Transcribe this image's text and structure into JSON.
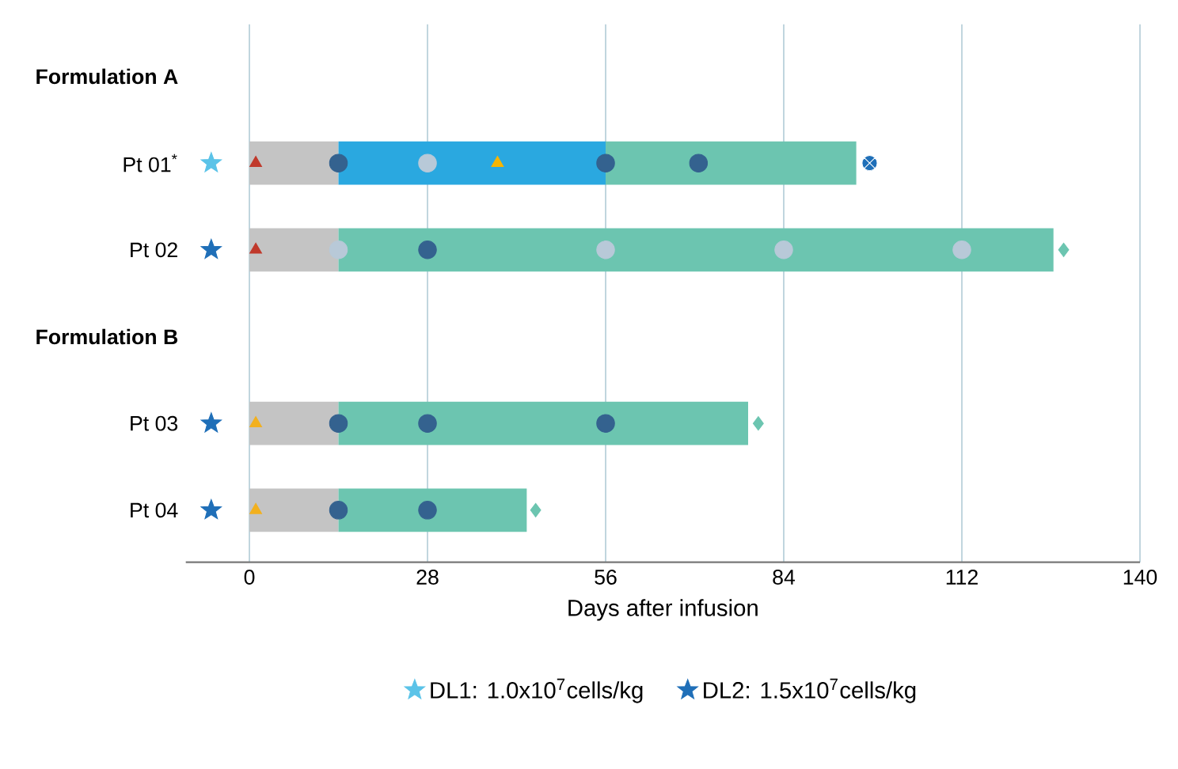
{
  "chart_data": {
    "type": "bar",
    "orientation": "horizontal",
    "stacked": true,
    "categories": [
      "Formulation A",
      "Pt 01$^{*}$",
      "Pt 02",
      "Formulation B",
      "Pt 03",
      "Pt 04"
    ],
    "xlabel": "Days after infusion",
    "xlim": [
      -10,
      140
    ],
    "xticks": [
      0,
      28,
      56,
      84,
      112,
      140
    ],
    "grid": "x",
    "legend": "bottom",
    "series": [
      {
        "color": "#c4c4c4",
        "values": [
          null,
          14,
          14,
          null,
          14,
          14
        ]
      },
      {
        "color": "#2aa8e0",
        "values": [
          null,
          42,
          null,
          null,
          null,
          null
        ]
      },
      {
        "color": "#6cc5b0",
        "values": [
          null,
          39.4,
          112.4,
          null,
          64.4,
          29.6
        ]
      },
      {
        "type": "scatter",
        "marker": "triangle",
        "color": "#c0392b",
        "values": [
          null,
          1,
          1,
          null,
          null,
          null
        ]
      },
      {
        "type": "scatter",
        "marker": "triangle",
        "color": "#f2b01e",
        "values": [
          null,
          null,
          null,
          null,
          1,
          1
        ]
      },
      {
        "type": "scatter",
        "marker": "triangle",
        "color": "#f7b500",
        "values": [
          null,
          39,
          null,
          null,
          null,
          null
        ]
      },
      {
        "type": "scatter",
        "marker": "circle",
        "color": "#34628f",
        "values": [
          null,
          14,
          28,
          null,
          14,
          14
        ]
      },
      {
        "type": "scatter",
        "marker": "circle",
        "color": "#34628f",
        "values": [
          null,
          56,
          null,
          null,
          28,
          28
        ]
      },
      {
        "type": "scatter",
        "marker": "circle",
        "color": "#34628f",
        "values": [
          null,
          70.6,
          null,
          null,
          56,
          null
        ]
      },
      {
        "type": "scatter",
        "marker": "circle",
        "color": "#b8c9d8",
        "values": [
          null,
          28,
          14,
          null,
          null,
          null
        ]
      },
      {
        "type": "scatter",
        "marker": "circle",
        "color": "#b8c9d8",
        "values": [
          null,
          null,
          56,
          null,
          null,
          null
        ]
      },
      {
        "type": "scatter",
        "marker": "circle",
        "color": "#b8c9d8",
        "values": [
          null,
          null,
          84,
          null,
          null,
          null
        ]
      },
      {
        "type": "scatter",
        "marker": "circle",
        "color": "#b8c9d8",
        "values": [
          null,
          null,
          112,
          null,
          null,
          null
        ]
      },
      {
        "type": "scatter",
        "marker": "cross",
        "color": "#1f6fb8",
        "values": [
          null,
          97.5,
          null,
          null,
          null,
          null
        ]
      },
      {
        "type": "scatter",
        "marker": "diamond",
        "color": "#6cc5b0",
        "values": [
          null,
          null,
          128,
          null,
          80,
          45
        ]
      },
      {
        "type": "scatter",
        "marker": "star",
        "name": "DL1: 1.0x10$^{7}$cells/kg",
        "color": "#5bc3e8",
        "values": [
          null,
          -6,
          null,
          null,
          null,
          null
        ]
      },
      {
        "type": "scatter",
        "marker": "star",
        "name": "DL2: 1.5x10$^{7}$cells/kg",
        "color": "#1f6fb8",
        "values": [
          null,
          null,
          -6,
          null,
          -6,
          -6
        ]
      }
    ]
  }
}
